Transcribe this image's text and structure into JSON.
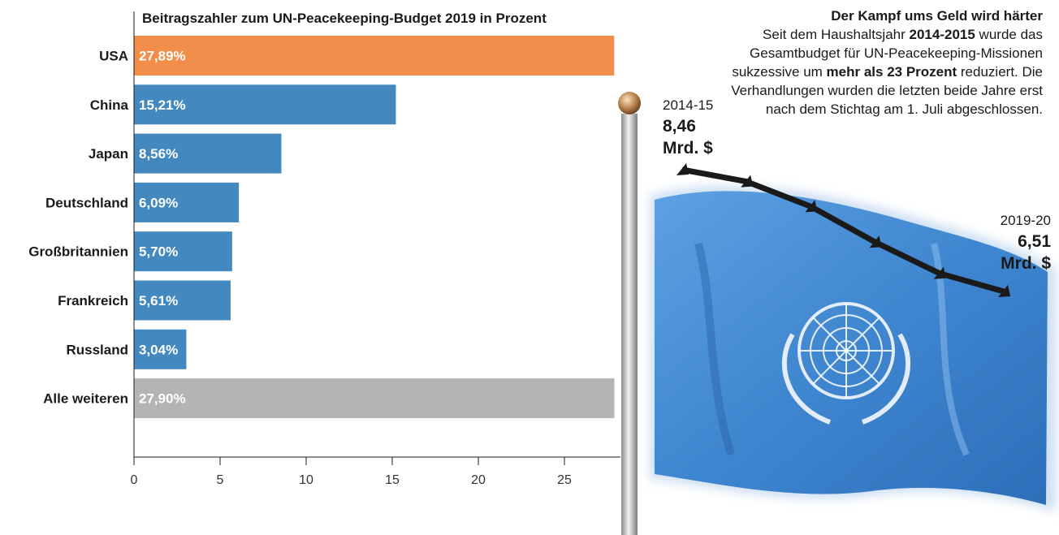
{
  "chart_data": {
    "type": "bar",
    "orientation": "horizontal",
    "title": "Beitragszahler zum UN-Peacekeeping-Budget 2019 in Prozent",
    "categories": [
      "USA",
      "China",
      "Japan",
      "Deutschland",
      "Großbritannien",
      "Frankreich",
      "Russland",
      "Alle weiteren"
    ],
    "values": [
      27.89,
      15.21,
      8.56,
      6.09,
      5.7,
      5.61,
      3.04,
      27.9
    ],
    "value_labels": [
      "27,89%",
      "15,21%",
      "8,56%",
      "6,09%",
      "5,70%",
      "5,61%",
      "3,04%",
      "27,90%"
    ],
    "xlim": [
      0,
      28
    ],
    "x_ticks": [
      0,
      5,
      10,
      15,
      20,
      25
    ],
    "grid": false,
    "colors": {
      "highlight": "#f28e4a",
      "default": "#4388bf",
      "other": "#b3b4b6"
    },
    "highlight_category": "USA",
    "other_category": "Alle weiteren"
  },
  "budget_trend": {
    "start": {
      "period": "2014-15",
      "value_line1": "8,46",
      "value_line2": "Mrd. $"
    },
    "end": {
      "period": "2019-20",
      "value_line1": "6,51",
      "value_line2": "Mrd. $"
    },
    "values_bn_usd": [
      8.46,
      8.27,
      7.87,
      7.3,
      6.8,
      6.51
    ]
  },
  "info": {
    "title": "Der Kampf ums Geld wird härter",
    "text_1": "Seit dem Haushaltsjahr ",
    "bold_1": "2014-2015",
    "text_2": " wurde das Gesamtbudget für UN-Peacekeeping-Missionen sukzessive um ",
    "bold_2": "mehr als 23 Prozent",
    "text_3": " reduziert. Die Verhandlungen wurden die letzten beide Jahre erst nach dem Stichtag am 1. Juli abgeschlossen."
  },
  "illustration": {
    "flag-icon": "un-flag-icon",
    "emblem-icon": "un-emblem-icon",
    "colors": {
      "flag": "#4b8fd6",
      "flag_dark": "#2a62a8",
      "pole": "#9a9a9a",
      "emblem": "#ffffff",
      "trend_line": "#1a1a1a"
    }
  }
}
